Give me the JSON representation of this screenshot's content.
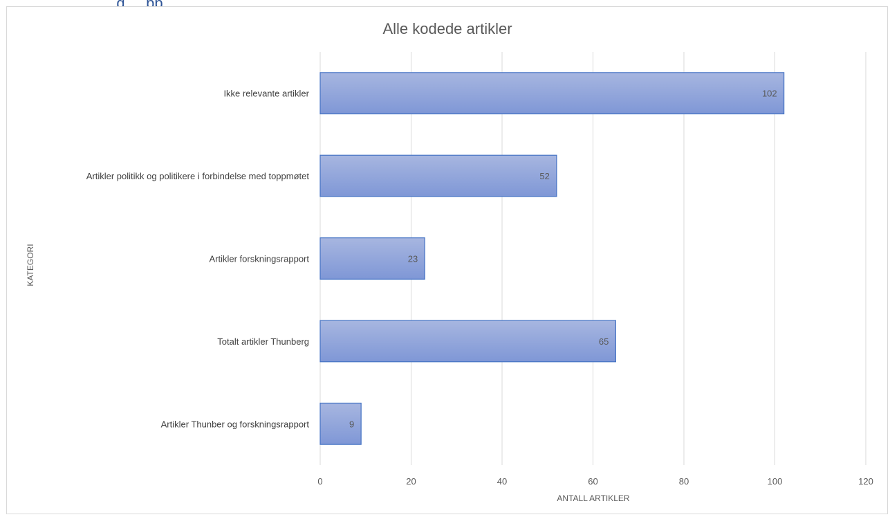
{
  "header": {
    "partial_text": "...g, ...pp..."
  },
  "chart_data": {
    "type": "bar",
    "orientation": "horizontal",
    "title": "Alle kodede artikler",
    "xlabel": "ANTALL ARTIKLER",
    "ylabel": "KATEGORI",
    "categories": [
      "Ikke relevante artikler",
      "Artikler politikk og politikere i forbindelse med toppmøtet",
      "Artikler forskningsrapport",
      "Totalt artikler Thunberg",
      "Artikler Thunber og forskningsrapport"
    ],
    "values": [
      102,
      52,
      23,
      65,
      9
    ],
    "xlim": [
      0,
      120
    ],
    "xticks": [
      0,
      20,
      40,
      60,
      80,
      100,
      120
    ],
    "grid": true,
    "legend": "none",
    "colors": {
      "bar_top": "#a7b6e0",
      "bar_bottom": "#7f97d6",
      "bar_border": "#4472c4",
      "grid": "#d9d9d9"
    }
  }
}
